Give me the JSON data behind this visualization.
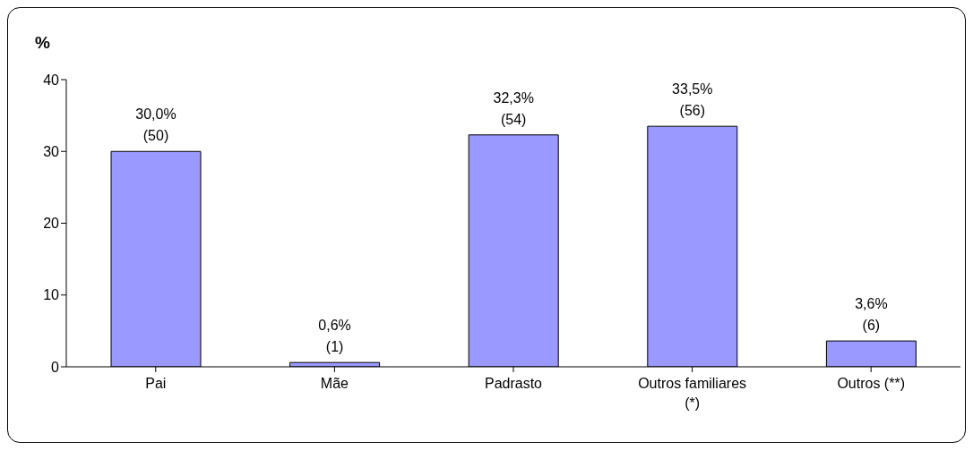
{
  "chart_data": {
    "type": "bar",
    "ylabel": "%",
    "categories": [
      "Pai",
      "Mãe",
      "Padrasto",
      "Outros familiares\n(*)",
      "Outros (**)"
    ],
    "values": [
      30.0,
      0.6,
      32.3,
      33.5,
      3.6
    ],
    "value_labels": [
      "30,0%\n(50)",
      "0,6%\n(1)",
      "32,3%\n(54)",
      "33,5%\n(56)",
      "3,6%\n(6)"
    ],
    "color": "#9999ff",
    "ylim": [
      0,
      40
    ],
    "yticks": [
      0,
      10,
      20,
      30,
      40
    ],
    "grid": false,
    "legend": false
  }
}
